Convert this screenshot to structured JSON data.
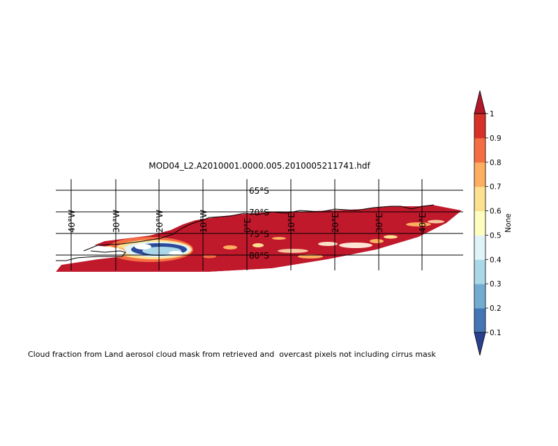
{
  "title": "MOD04_L2.A2010001.0000.005.2010005211741.hdf",
  "caption": "Cloud fraction from Land aerosol cloud mask from retrieved and  overcast pixels not including cirrus mask",
  "latitude_labels": [
    "65°S",
    "70°S",
    "75°S",
    "80°S"
  ],
  "longitude_labels": [
    "40°W",
    "30°W",
    "20°W",
    "10°W",
    "0°E",
    "10°E",
    "20°E",
    "30°E",
    "40°E"
  ],
  "colorbar": {
    "label": "None",
    "ticks": [
      "0.1",
      "0.2",
      "0.3",
      "0.4",
      "0.5",
      "0.6",
      "0.7",
      "0.8",
      "0.9",
      "1"
    ],
    "colors": [
      "#2b3f8f",
      "#4475b4",
      "#73acd1",
      "#abd8e9",
      "#e0f3f8",
      "#fefec0",
      "#fee091",
      "#fdae61",
      "#f46d43",
      "#d73027",
      "#b2182b"
    ]
  },
  "map": {
    "dominant_value_color": "#c0192b",
    "grid": true,
    "coastline_color": "#000000"
  }
}
